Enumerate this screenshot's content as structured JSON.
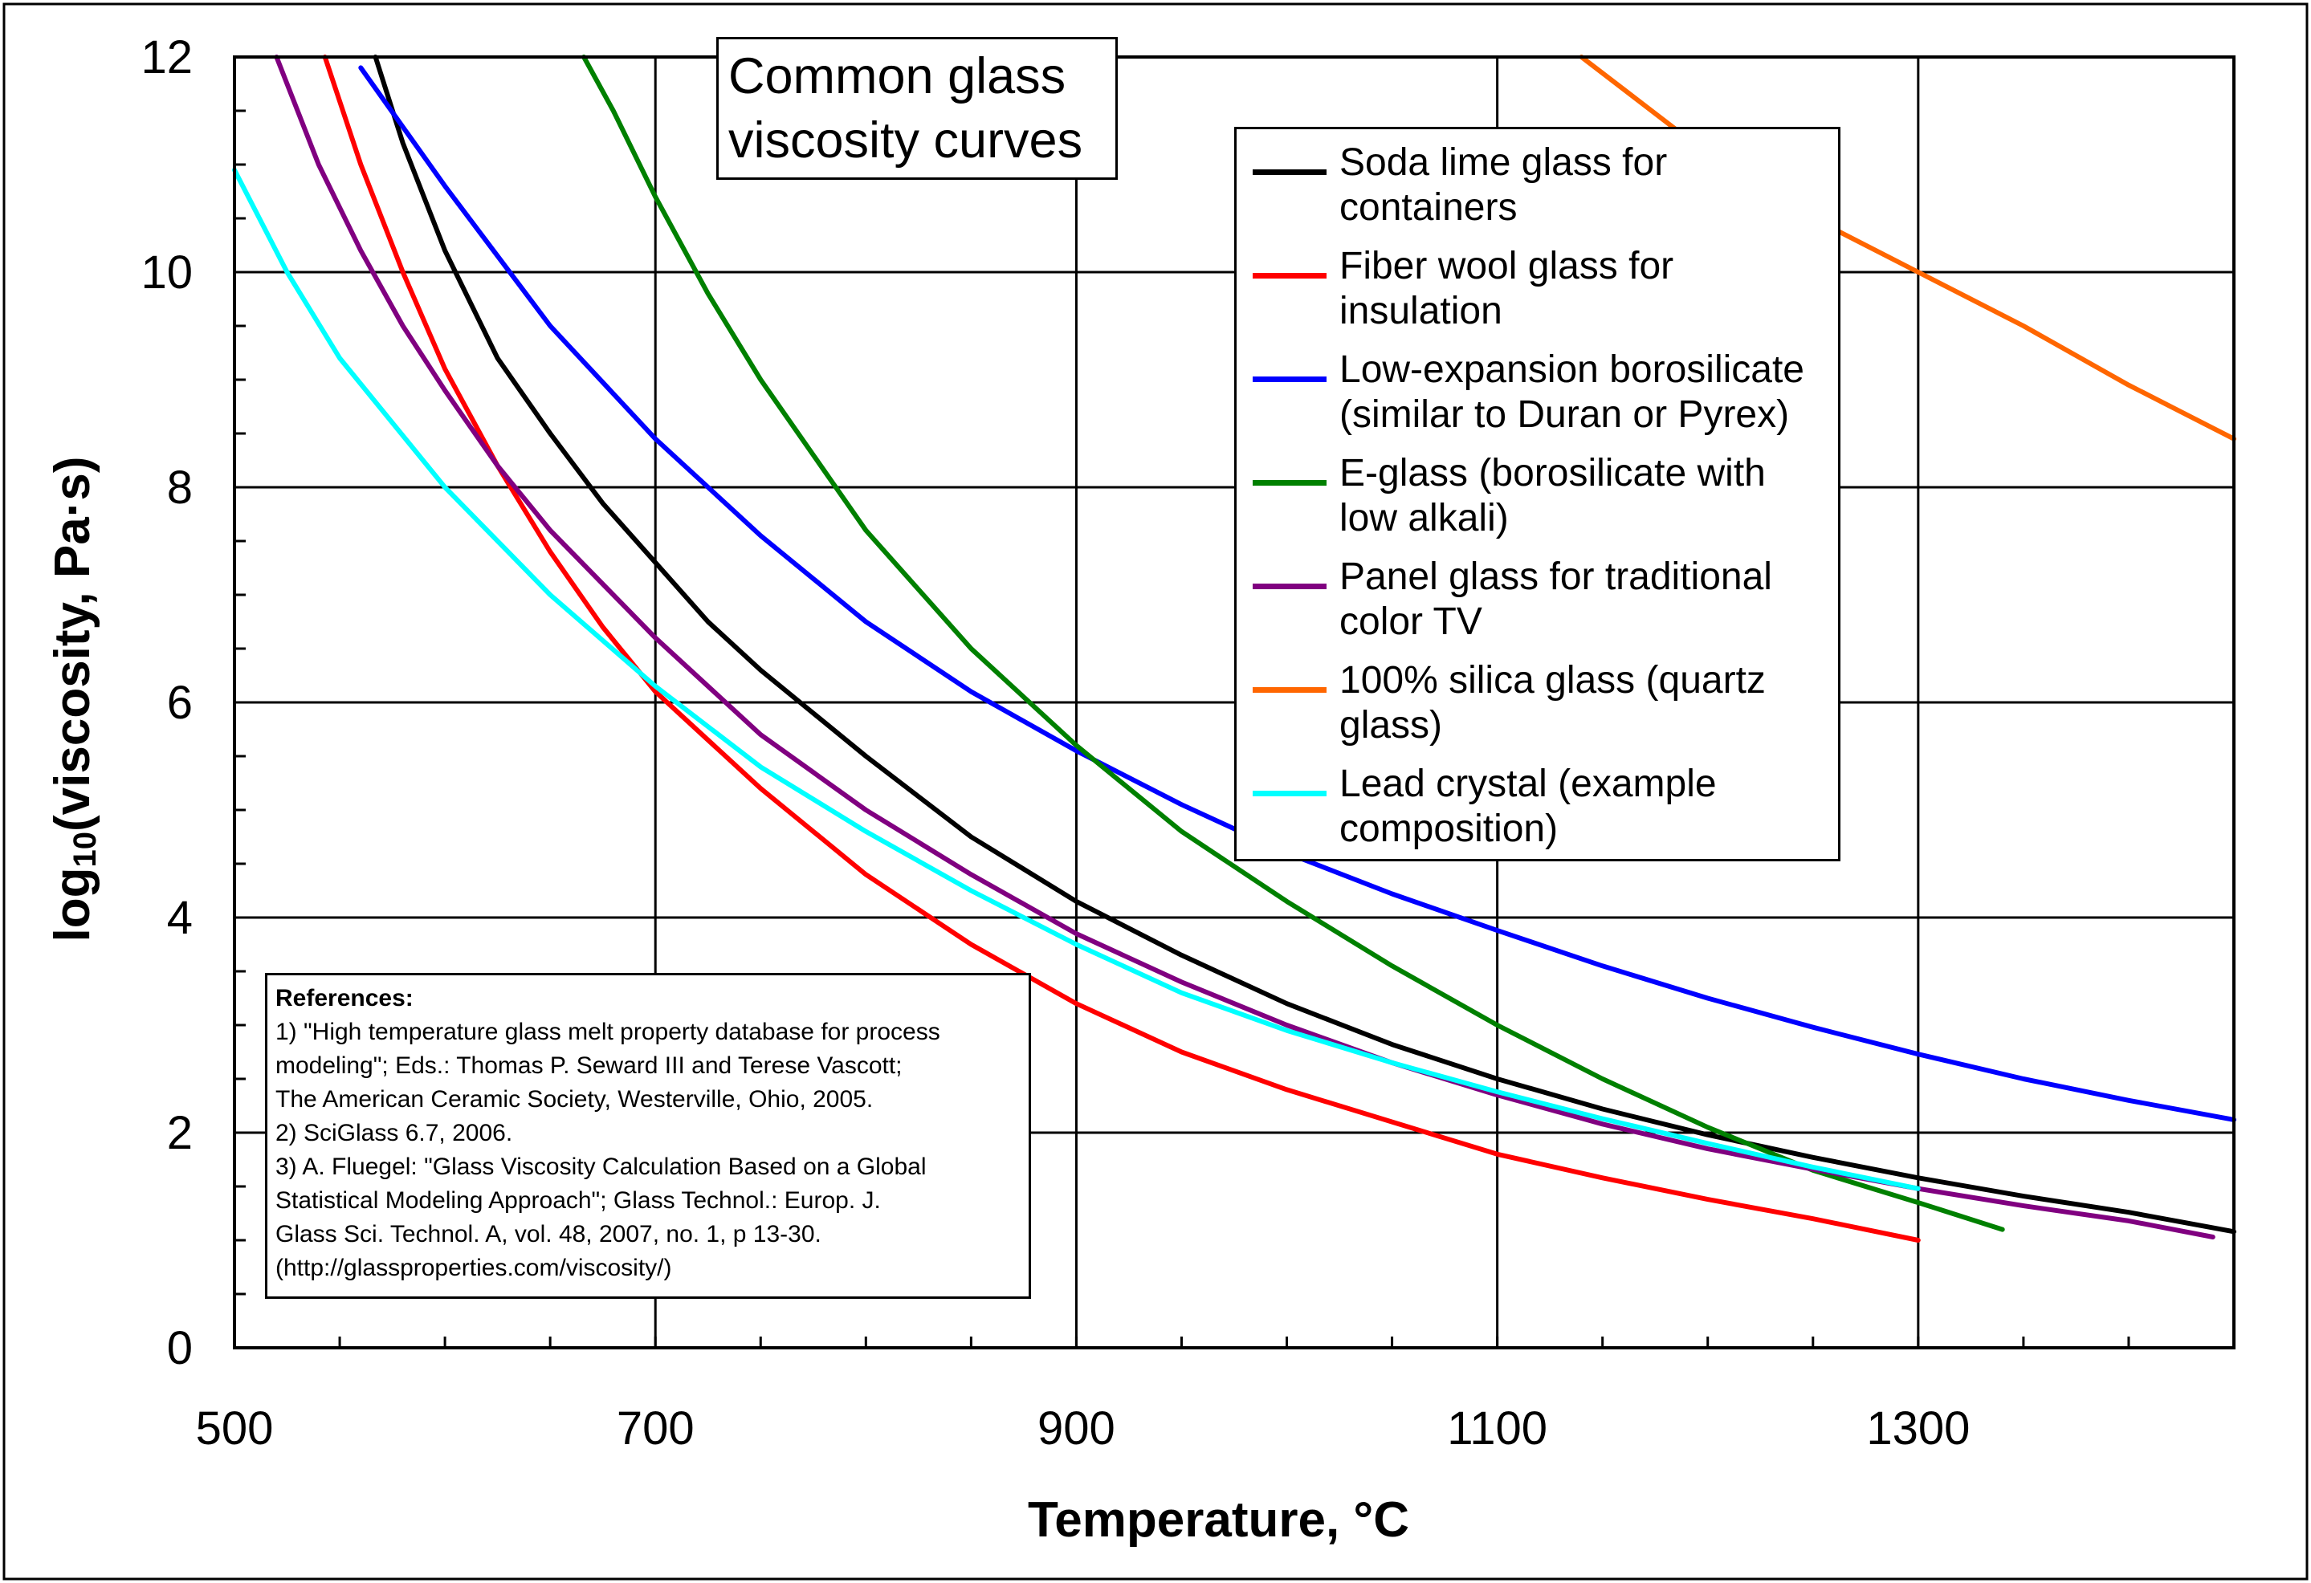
{
  "chart_data": {
    "type": "line",
    "title_lines": [
      "Common glass",
      "viscosity curves"
    ],
    "xlabel": "Temperature, °C",
    "ylabel": {
      "prefix": "log",
      "sub": "10",
      "suffix": "(viscosity, Pa·s)"
    },
    "xlim": [
      500,
      1450
    ],
    "ylim": [
      0,
      12
    ],
    "x_ticks": [
      500,
      700,
      900,
      1100,
      1300
    ],
    "y_ticks": [
      0,
      2,
      4,
      6,
      8,
      10,
      12
    ],
    "grid": true,
    "legend_position": "upper-right",
    "series": [
      {
        "name": "Soda lime glass for containers",
        "legend_lines": [
          "Soda lime glass for",
          "containers"
        ],
        "color": "#000000",
        "x": [
          567,
          580,
          600,
          625,
          650,
          675,
          700,
          725,
          750,
          800,
          850,
          900,
          950,
          1000,
          1050,
          1100,
          1150,
          1200,
          1250,
          1300,
          1350,
          1400,
          1450
        ],
        "y": [
          12,
          11.2,
          10.2,
          9.2,
          8.5,
          7.85,
          7.3,
          6.75,
          6.3,
          5.5,
          4.75,
          4.15,
          3.65,
          3.2,
          2.82,
          2.5,
          2.22,
          1.98,
          1.77,
          1.58,
          1.41,
          1.26,
          1.08
        ]
      },
      {
        "name": "Fiber wool glass for insulation",
        "legend_lines": [
          "Fiber wool glass for",
          "insulation"
        ],
        "color": "#ff0000",
        "x": [
          543,
          560,
          580,
          600,
          625,
          650,
          675,
          700,
          750,
          800,
          850,
          900,
          950,
          1000,
          1050,
          1100,
          1150,
          1200,
          1250,
          1300
        ],
        "y": [
          12,
          11,
          10.0,
          9.1,
          8.2,
          7.4,
          6.7,
          6.1,
          5.2,
          4.4,
          3.75,
          3.2,
          2.75,
          2.4,
          2.1,
          1.8,
          1.58,
          1.38,
          1.2,
          1.0
        ]
      },
      {
        "name": "Low-expansion borosilicate (similar to Duran or Pyrex)",
        "legend_lines": [
          "Low-expansion borosilicate",
          "(similar to Duran or Pyrex)"
        ],
        "color": "#0000ff",
        "x": [
          560,
          600,
          650,
          700,
          750,
          800,
          850,
          900,
          950,
          1000,
          1050,
          1100,
          1150,
          1200,
          1250,
          1300,
          1350,
          1400,
          1450
        ],
        "y": [
          11.9,
          10.8,
          9.5,
          8.45,
          7.55,
          6.75,
          6.1,
          5.55,
          5.05,
          4.6,
          4.22,
          3.88,
          3.55,
          3.25,
          2.98,
          2.73,
          2.5,
          2.3,
          2.12
        ]
      },
      {
        "name": "E-glass (borosilicate with low alkali)",
        "legend_lines": [
          "E-glass (borosilicate with",
          "low alkali)"
        ],
        "color": "#008000",
        "x": [
          666,
          680,
          700,
          725,
          750,
          775,
          800,
          850,
          900,
          950,
          1000,
          1050,
          1100,
          1150,
          1200,
          1250,
          1300,
          1340
        ],
        "y": [
          12,
          11.5,
          10.7,
          9.8,
          9.0,
          8.3,
          7.6,
          6.5,
          5.6,
          4.8,
          4.15,
          3.55,
          3.0,
          2.5,
          2.05,
          1.65,
          1.35,
          1.1
        ]
      },
      {
        "name": "Panel glass for traditional color TV",
        "legend_lines": [
          "Panel glass for traditional",
          "color TV"
        ],
        "color": "#800080",
        "x": [
          520,
          540,
          560,
          580,
          600,
          625,
          650,
          700,
          750,
          800,
          850,
          900,
          950,
          1000,
          1050,
          1100,
          1150,
          1200,
          1250,
          1300,
          1350,
          1400,
          1440
        ],
        "y": [
          12,
          11.0,
          10.2,
          9.5,
          8.9,
          8.2,
          7.6,
          6.6,
          5.7,
          5.0,
          4.4,
          3.85,
          3.4,
          3.0,
          2.65,
          2.35,
          2.08,
          1.85,
          1.66,
          1.48,
          1.32,
          1.18,
          1.03
        ]
      },
      {
        "name": "100% silica glass (quartz glass)",
        "legend_lines": [
          "100% silica glass (quartz",
          "glass)"
        ],
        "color": "#ff6600",
        "x": [
          1140,
          1200,
          1250,
          1300,
          1350,
          1400,
          1450
        ],
        "y": [
          12,
          11.1,
          10.5,
          10.0,
          9.5,
          8.95,
          8.45
        ]
      },
      {
        "name": "Lead crystal (example composition)",
        "legend_lines": [
          "Lead crystal (example",
          "composition)"
        ],
        "color": "#00ffff",
        "x": [
          500,
          525,
          550,
          575,
          600,
          650,
          700,
          750,
          800,
          850,
          900,
          950,
          1000,
          1050,
          1100,
          1150,
          1200,
          1250,
          1300
        ],
        "y": [
          10.95,
          10.0,
          9.2,
          8.6,
          8.0,
          7.0,
          6.15,
          5.4,
          4.8,
          4.25,
          3.75,
          3.3,
          2.95,
          2.65,
          2.38,
          2.13,
          1.9,
          1.68,
          1.48
        ]
      }
    ],
    "references": [
      "References:",
      "1) \"High temperature glass melt property database for process",
      "modeling\"; Eds.: Thomas P. Seward III and Terese Vascott;",
      "The American Ceramic Society, Westerville, Ohio, 2005.",
      "2) SciGlass 6.7, 2006.",
      "3) A. Fluegel: \"Glass Viscosity Calculation Based on a Global",
      "Statistical Modeling Approach\"; Glass Technol.: Europ. J.",
      "Glass Sci. Technol. A, vol. 48, 2007, no. 1, p 13-30.",
      "(http://glassproperties.com/viscosity/)"
    ]
  }
}
